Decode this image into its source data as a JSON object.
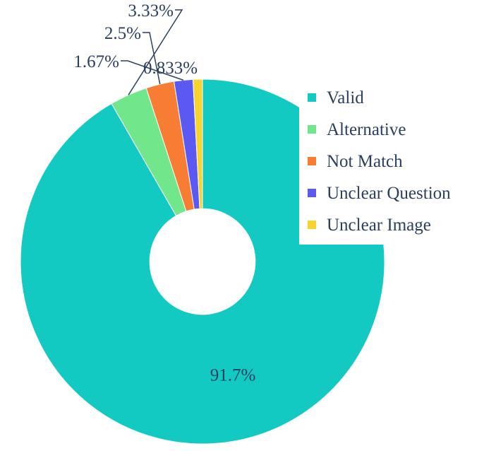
{
  "chart_data": {
    "type": "pie",
    "hole": 0.29,
    "title": "",
    "legend_position": "top-right",
    "slices": [
      {
        "name": "Valid",
        "value": 91.7,
        "label": "91.7%",
        "color": "#13cac2"
      },
      {
        "name": "Alternative",
        "value": 3.33,
        "label": "3.33%",
        "color": "#72e68a"
      },
      {
        "name": "Not Match",
        "value": 2.5,
        "label": "2.5%",
        "color": "#f87d34"
      },
      {
        "name": "Unclear Question",
        "value": 1.67,
        "label": "1.67%",
        "color": "#5b59f1"
      },
      {
        "name": "Unclear Image",
        "value": 0.833,
        "label": "0.833%",
        "color": "#f8d22e"
      }
    ]
  }
}
